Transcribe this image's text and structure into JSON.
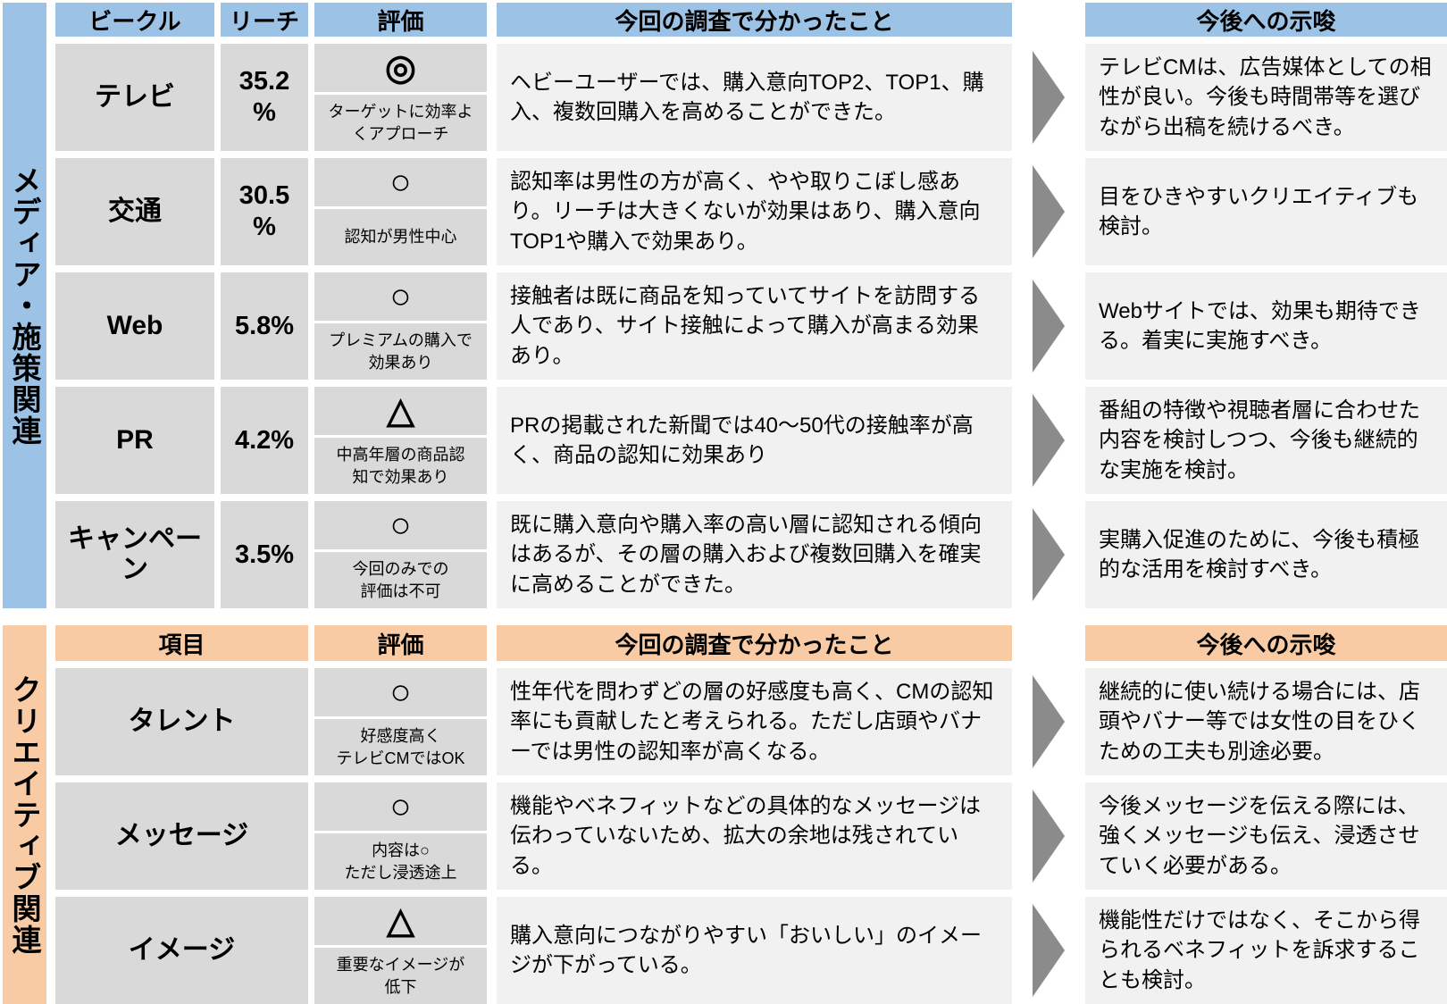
{
  "colors": {
    "header_blue": "#9CC2E5",
    "header_orange": "#F9CBA4",
    "cell_gray": "#D9D9D9",
    "text_cell_gray": "#F1F1F1",
    "arrow_gray": "#8B8B8B",
    "text": "#000000"
  },
  "sections": [
    {
      "side_label": "メディア・施策関連",
      "headers": {
        "vehicle": "ビークル",
        "reach": "リーチ",
        "eval": "評価",
        "findings": "今回の調査で分かったこと",
        "implications": "今後への示唆"
      },
      "rows": [
        {
          "vehicle": "テレビ",
          "reach": "35.2\n%",
          "eval_symbol": "◎",
          "eval_note": "ターゲットに効率よ\nくアプローチ",
          "finding": "ヘビーユーザーでは、購入意向TOP2、TOP1、購入、複数回購入を高めることができた。",
          "implication": "テレビCMは、広告媒体としての相性が良い。今後も時間帯等を選びながら出稿を続けるべき。"
        },
        {
          "vehicle": "交通",
          "reach": "30.5\n%",
          "eval_symbol": "○",
          "eval_note": "認知が男性中心",
          "finding": "認知率は男性の方が高く、やや取りこぼし感あり。リーチは大きくないが効果はあり、購入意向TOP1や購入で効果あり。",
          "implication": "目をひきやすいクリエイティブも検討。"
        },
        {
          "vehicle": "Web",
          "reach": "5.8%",
          "eval_symbol": "○",
          "eval_note": "プレミアムの購入で\n効果あり",
          "finding": "接触者は既に商品を知っていてサイトを訪問する人であり、サイト接触によって購入が高まる効果あり。",
          "implication": "Webサイトでは、効果も期待できる。着実に実施すべき。"
        },
        {
          "vehicle": "PR",
          "reach": "4.2%",
          "eval_symbol": "△",
          "eval_note": "中高年層の商品認\n知で効果あり",
          "finding": "PRの掲載された新聞では40～50代の接触率が高く、商品の認知に効果あり",
          "implication": "番組の特徴や視聴者層に合わせた内容を検討しつつ、今後も継続的な実施を検討。"
        },
        {
          "vehicle": "キャンペーン",
          "reach": "3.5%",
          "eval_symbol": "○",
          "eval_note": "今回のみでの\n評価は不可",
          "finding": "既に購入意向や購入率の高い層に認知される傾向はあるが、その層の購入および複数回購入を確実に高めることができた。",
          "implication": "実購入促進のために、今後も積極的な活用を検討すべき。"
        }
      ]
    },
    {
      "side_label": "クリエイティブ関連",
      "headers": {
        "item": "項目",
        "eval": "評価",
        "findings": "今回の調査で分かったこと",
        "implications": "今後への示唆"
      },
      "rows": [
        {
          "item": "タレント",
          "eval_symbol": "○",
          "eval_note": "好感度高く\nテレビCMではOK",
          "finding": "性年代を問わずどの層の好感度も高く、CMの認知率にも貢献したと考えられる。ただし店頭やバナーでは男性の認知率が高くなる。",
          "implication": "継続的に使い続ける場合には、店頭やバナー等では女性の目をひくための工夫も別途必要。"
        },
        {
          "item": "メッセージ",
          "eval_symbol": "○",
          "eval_note": "内容は○\nただし浸透途上",
          "finding": "機能やベネフィットなどの具体的なメッセージは伝わっていないため、拡大の余地は残されている。",
          "implication": "今後メッセージを伝える際には、強くメッセージも伝え、浸透させていく必要がある。"
        },
        {
          "item": "イメージ",
          "eval_symbol": "△",
          "eval_note": "重要なイメージが\n低下",
          "finding": "購入意向につながりやすい「おいしい」のイメージが下がっている。",
          "implication": "機能性だけではなく、そこから得られるベネフィットを訴求することも検討。"
        }
      ]
    }
  ]
}
